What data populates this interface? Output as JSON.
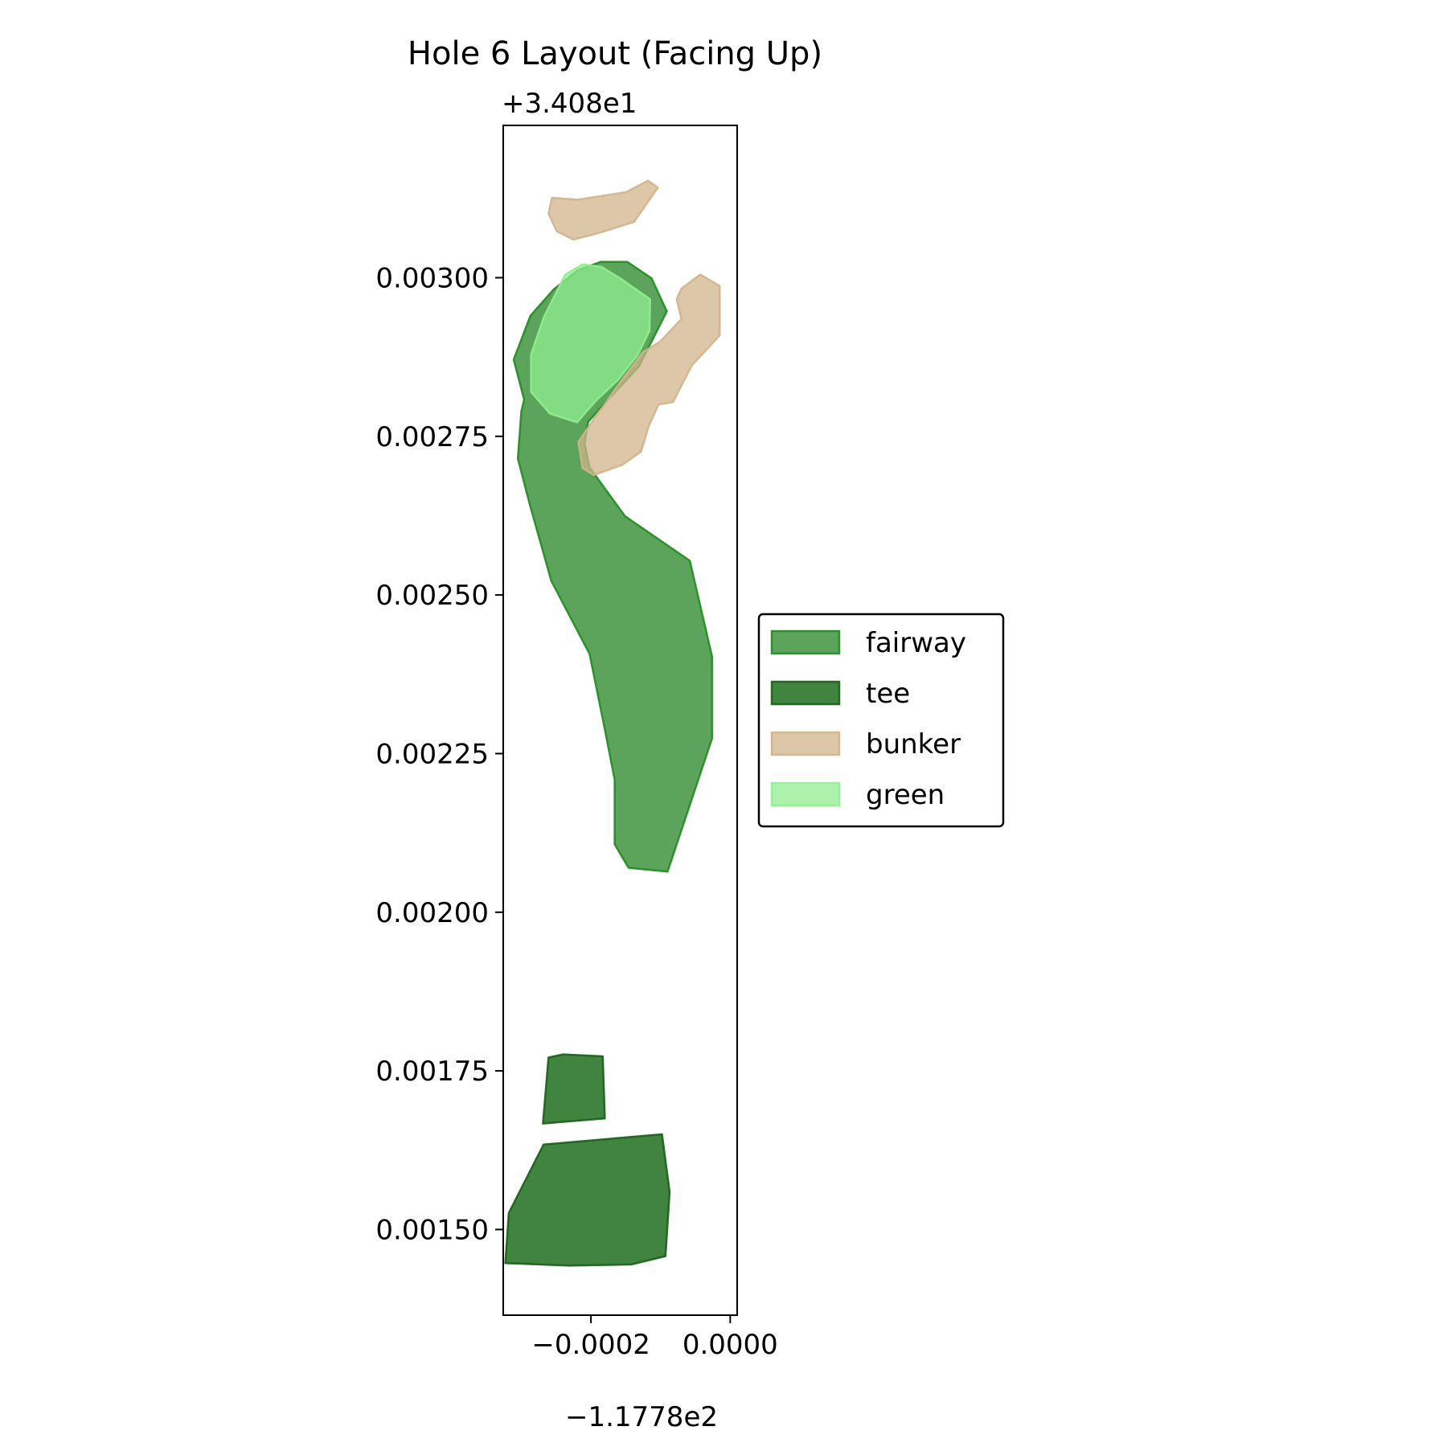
{
  "chart_data": {
    "type": "area",
    "title": "Hole 6 Layout (Facing Up)",
    "xlabel": "",
    "ylabel": "",
    "x_offset_label": "−1.1778e2",
    "y_offset_label": "+3.408e1",
    "xlim": [
      -0.000326,
      1e-05
    ],
    "ylim": [
      0.001365,
      0.00324
    ],
    "x_ticks": [
      {
        "value": -0.0002,
        "label": "−0.0002"
      },
      {
        "value": 0.0,
        "label": "0.0000"
      }
    ],
    "y_ticks": [
      {
        "value": 0.0015,
        "label": "0.00150"
      },
      {
        "value": 0.00175,
        "label": "0.00175"
      },
      {
        "value": 0.002,
        "label": "0.00200"
      },
      {
        "value": 0.00225,
        "label": "0.00225"
      },
      {
        "value": 0.0025,
        "label": "0.00250"
      },
      {
        "value": 0.00275,
        "label": "0.00275"
      },
      {
        "value": 0.003,
        "label": "0.00300"
      }
    ],
    "grid": false,
    "legend_position": "right, outside axes",
    "series": [
      {
        "name": "fairway",
        "fill": "#2e8b2e",
        "stroke": "#228b22",
        "opacity": 0.78,
        "polygons": [
          [
            [
              -0.000186,
              0.003025
            ],
            [
              -0.000148,
              0.003025
            ],
            [
              -0.000113,
              0.002999
            ],
            [
              -9.1e-05,
              0.002947
            ],
            [
              -0.000131,
              0.00286
            ],
            [
              -0.000176,
              0.002807
            ],
            [
              -0.000204,
              0.002773
            ],
            [
              -0.000209,
              0.002739
            ],
            [
              -0.000202,
              0.002701
            ],
            [
              -0.000151,
              0.002624
            ],
            [
              -5.8e-05,
              0.002554
            ],
            [
              -2.6e-05,
              0.002403
            ],
            [
              -2.6e-05,
              0.002274
            ],
            [
              -9e-05,
              0.002064
            ],
            [
              -0.000146,
              0.00207
            ],
            [
              -0.000166,
              0.002107
            ],
            [
              -0.000166,
              0.002209
            ],
            [
              -0.00018,
              0.002288
            ],
            [
              -0.000202,
              0.002407
            ],
            [
              -0.000257,
              0.002522
            ],
            [
              -0.000288,
              0.002643
            ],
            [
              -0.000305,
              0.002715
            ],
            [
              -0.0003,
              0.002789
            ],
            [
              -0.000296,
              0.002808
            ],
            [
              -0.000311,
              0.002871
            ],
            [
              -0.000287,
              0.00294
            ],
            [
              -0.000254,
              0.002981
            ],
            [
              -0.000219,
              0.003012
            ]
          ]
        ]
      },
      {
        "name": "tee",
        "fill": "#1e6e1e",
        "stroke": "#1a5e1a",
        "opacity": 0.85,
        "polygons": [
          [
            [
              -0.000261,
              0.001771
            ],
            [
              -0.00024,
              0.001776
            ],
            [
              -0.000183,
              0.001773
            ],
            [
              -0.00018,
              0.001675
            ],
            [
              -0.000269,
              0.001667
            ]
          ],
          [
            [
              -0.000268,
              0.001634
            ],
            [
              -9.8e-05,
              0.00165
            ],
            [
              -8.7e-05,
              0.001559
            ],
            [
              -9.3e-05,
              0.001458
            ],
            [
              -0.000142,
              0.001445
            ],
            [
              -0.000231,
              0.001443
            ],
            [
              -0.000323,
              0.001447
            ],
            [
              -0.000318,
              0.001526
            ]
          ]
        ]
      },
      {
        "name": "bunker",
        "fill": "#d2b48c",
        "stroke": "#d2b48c",
        "opacity": 0.75,
        "polygons": [
          [
            [
              -0.000256,
              0.003126
            ],
            [
              -0.000219,
              0.003123
            ],
            [
              -0.000149,
              0.003135
            ],
            [
              -0.000118,
              0.003153
            ],
            [
              -0.000104,
              0.003142
            ],
            [
              -0.000138,
              0.003088
            ],
            [
              -0.000187,
              0.003071
            ],
            [
              -0.000225,
              0.00306
            ],
            [
              -0.000249,
              0.003073
            ],
            [
              -0.000261,
              0.003101
            ]
          ],
          [
            [
              -0.000125,
              0.002883
            ],
            [
              -0.000101,
              0.002899
            ],
            [
              -7e-05,
              0.002935
            ],
            [
              -7.7e-05,
              0.002966
            ],
            [
              -7e-05,
              0.002983
            ],
            [
              -4.3e-05,
              0.003005
            ],
            [
              -1.5e-05,
              0.002987
            ],
            [
              -1.5e-05,
              0.002909
            ],
            [
              -5.5e-05,
              0.002862
            ],
            [
              -8.2e-05,
              0.002804
            ],
            [
              -0.000103,
              0.0028
            ],
            [
              -0.000117,
              0.002766
            ],
            [
              -0.000128,
              0.002726
            ],
            [
              -0.000155,
              0.002705
            ],
            [
              -0.000196,
              0.002689
            ],
            [
              -0.000212,
              0.0027
            ],
            [
              -0.000218,
              0.002741
            ],
            [
              -0.000194,
              0.00278
            ],
            [
              -0.000178,
              0.002804
            ],
            [
              -0.000152,
              0.002844
            ]
          ]
        ]
      },
      {
        "name": "green",
        "fill": "#90ee90",
        "stroke": "#90ee90",
        "opacity": 0.75,
        "polygons": [
          [
            [
              -0.000237,
              0.003005
            ],
            [
              -0.000212,
              0.003021
            ],
            [
              -0.000185,
              0.003017
            ],
            [
              -0.000158,
              0.002999
            ],
            [
              -0.000115,
              0.002966
            ],
            [
              -0.000116,
              0.002916
            ],
            [
              -0.000133,
              0.002878
            ],
            [
              -0.000162,
              0.002838
            ],
            [
              -0.000193,
              0.002806
            ],
            [
              -0.00022,
              0.002772
            ],
            [
              -0.000259,
              0.002786
            ],
            [
              -0.000286,
              0.00282
            ],
            [
              -0.000286,
              0.002879
            ],
            [
              -0.000268,
              0.002937
            ]
          ]
        ]
      }
    ]
  }
}
